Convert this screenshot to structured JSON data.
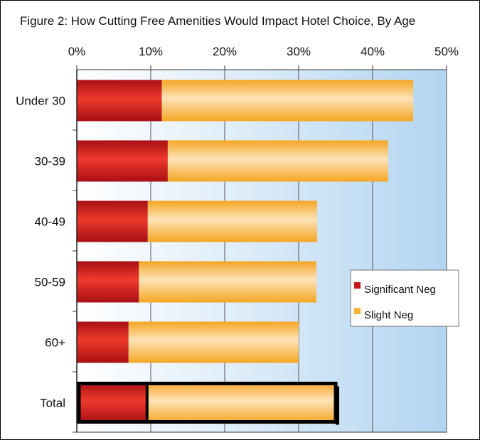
{
  "chart_data": {
    "type": "bar",
    "orientation": "horizontal",
    "stacked": true,
    "title": "Figure 2: How Cutting Free Amenities Would Impact Hotel Choice, By Age",
    "xlabel": "",
    "ylabel": "",
    "xlim": [
      0,
      50
    ],
    "x_ticks": [
      "0%",
      "10%",
      "20%",
      "30%",
      "40%",
      "50%"
    ],
    "x_tick_values": [
      0,
      10,
      20,
      30,
      40,
      50
    ],
    "categories": [
      "Under 30",
      "30-39",
      "40-49",
      "50-59",
      "60+",
      "Total"
    ],
    "series": [
      {
        "name": "Significant Neg",
        "color": "#c8171b",
        "values": [
          11.5,
          12.3,
          9.6,
          8.4,
          7.0,
          9.5
        ]
      },
      {
        "name": "Slight Neg",
        "color": "#f7b23a",
        "values": [
          34.0,
          29.8,
          22.9,
          24.0,
          23.0,
          25.5
        ]
      }
    ],
    "highlighted_category": "Total",
    "grid": "vertical",
    "legend_position": "right",
    "plot_background": "#b9d9f3"
  }
}
